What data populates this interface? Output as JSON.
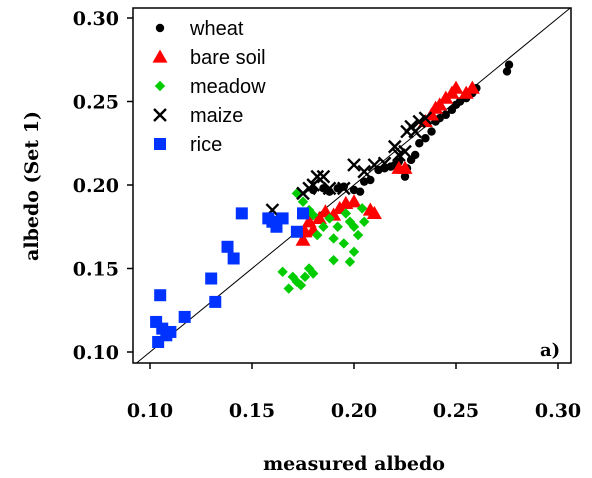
{
  "chart_data": {
    "type": "scatter",
    "title": "",
    "xlabel": "measured albedo",
    "ylabel": "albedo (Set 1)",
    "panel_tag": "a)",
    "xlim": [
      0.1,
      0.3
    ],
    "ylim": [
      0.1,
      0.3
    ],
    "x_ticks": [
      "0.10",
      "0.15",
      "0.20",
      "0.25",
      "0.30"
    ],
    "y_ticks": [
      "0.10",
      "0.15",
      "0.20",
      "0.25",
      "0.30"
    ],
    "reference_line": "1:1",
    "legend_position": "top-left",
    "series": [
      {
        "name": "wheat",
        "marker": "dot",
        "color": "#000000",
        "points": [
          [
            0.18,
            0.197
          ],
          [
            0.185,
            0.198
          ],
          [
            0.188,
            0.196
          ],
          [
            0.192,
            0.198
          ],
          [
            0.195,
            0.199
          ],
          [
            0.2,
            0.197
          ],
          [
            0.203,
            0.196
          ],
          [
            0.205,
            0.202
          ],
          [
            0.208,
            0.203
          ],
          [
            0.212,
            0.209
          ],
          [
            0.215,
            0.21
          ],
          [
            0.218,
            0.211
          ],
          [
            0.22,
            0.212
          ],
          [
            0.222,
            0.214
          ],
          [
            0.225,
            0.205
          ],
          [
            0.226,
            0.21
          ],
          [
            0.228,
            0.215
          ],
          [
            0.23,
            0.218
          ],
          [
            0.232,
            0.225
          ],
          [
            0.235,
            0.228
          ],
          [
            0.238,
            0.232
          ],
          [
            0.24,
            0.238
          ],
          [
            0.242,
            0.24
          ],
          [
            0.245,
            0.242
          ],
          [
            0.248,
            0.245
          ],
          [
            0.25,
            0.248
          ],
          [
            0.252,
            0.25
          ],
          [
            0.255,
            0.252
          ],
          [
            0.258,
            0.255
          ],
          [
            0.26,
            0.258
          ],
          [
            0.275,
            0.268
          ],
          [
            0.276,
            0.272
          ]
        ]
      },
      {
        "name": "bare soil",
        "marker": "triangle",
        "color": "#ff0000",
        "points": [
          [
            0.175,
            0.167
          ],
          [
            0.176,
            0.172
          ],
          [
            0.178,
            0.178
          ],
          [
            0.18,
            0.173
          ],
          [
            0.183,
            0.18
          ],
          [
            0.186,
            0.184
          ],
          [
            0.19,
            0.182
          ],
          [
            0.193,
            0.186
          ],
          [
            0.196,
            0.189
          ],
          [
            0.2,
            0.19
          ],
          [
            0.208,
            0.185
          ],
          [
            0.21,
            0.183
          ],
          [
            0.222,
            0.21
          ],
          [
            0.225,
            0.21
          ],
          [
            0.235,
            0.238
          ],
          [
            0.238,
            0.242
          ],
          [
            0.24,
            0.246
          ],
          [
            0.242,
            0.248
          ],
          [
            0.245,
            0.252
          ],
          [
            0.248,
            0.255
          ],
          [
            0.25,
            0.258
          ],
          [
            0.255,
            0.255
          ],
          [
            0.258,
            0.258
          ]
        ]
      },
      {
        "name": "meadow",
        "marker": "diamond",
        "color": "#00cc00",
        "points": [
          [
            0.165,
            0.148
          ],
          [
            0.168,
            0.138
          ],
          [
            0.17,
            0.145
          ],
          [
            0.172,
            0.142
          ],
          [
            0.174,
            0.14
          ],
          [
            0.176,
            0.145
          ],
          [
            0.178,
            0.15
          ],
          [
            0.18,
            0.147
          ],
          [
            0.172,
            0.195
          ],
          [
            0.175,
            0.19
          ],
          [
            0.178,
            0.185
          ],
          [
            0.18,
            0.182
          ],
          [
            0.182,
            0.17
          ],
          [
            0.185,
            0.175
          ],
          [
            0.188,
            0.18
          ],
          [
            0.19,
            0.168
          ],
          [
            0.192,
            0.175
          ],
          [
            0.195,
            0.165
          ],
          [
            0.196,
            0.183
          ],
          [
            0.198,
            0.178
          ],
          [
            0.2,
            0.175
          ],
          [
            0.202,
            0.17
          ],
          [
            0.204,
            0.186
          ],
          [
            0.205,
            0.178
          ],
          [
            0.198,
            0.154
          ],
          [
            0.2,
            0.16
          ],
          [
            0.19,
            0.155
          ]
        ]
      },
      {
        "name": "maize",
        "marker": "cross",
        "color": "#000000",
        "points": [
          [
            0.16,
            0.185
          ],
          [
            0.175,
            0.195
          ],
          [
            0.178,
            0.198
          ],
          [
            0.18,
            0.2
          ],
          [
            0.182,
            0.205
          ],
          [
            0.185,
            0.205
          ],
          [
            0.188,
            0.198
          ],
          [
            0.195,
            0.198
          ],
          [
            0.2,
            0.212
          ],
          [
            0.205,
            0.208
          ],
          [
            0.21,
            0.212
          ],
          [
            0.215,
            0.213
          ],
          [
            0.22,
            0.223
          ],
          [
            0.222,
            0.218
          ],
          [
            0.225,
            0.22
          ],
          [
            0.226,
            0.232
          ],
          [
            0.228,
            0.235
          ],
          [
            0.23,
            0.232
          ],
          [
            0.232,
            0.238
          ],
          [
            0.235,
            0.24
          ]
        ]
      },
      {
        "name": "rice",
        "marker": "square",
        "color": "#0033ff",
        "points": [
          [
            0.103,
            0.118
          ],
          [
            0.104,
            0.106
          ],
          [
            0.105,
            0.134
          ],
          [
            0.106,
            0.114
          ],
          [
            0.108,
            0.11
          ],
          [
            0.11,
            0.112
          ],
          [
            0.117,
            0.121
          ],
          [
            0.132,
            0.13
          ],
          [
            0.13,
            0.144
          ],
          [
            0.138,
            0.163
          ],
          [
            0.141,
            0.156
          ],
          [
            0.145,
            0.183
          ],
          [
            0.158,
            0.18
          ],
          [
            0.16,
            0.178
          ],
          [
            0.162,
            0.175
          ],
          [
            0.165,
            0.18
          ],
          [
            0.172,
            0.172
          ],
          [
            0.175,
            0.183
          ]
        ]
      }
    ]
  }
}
